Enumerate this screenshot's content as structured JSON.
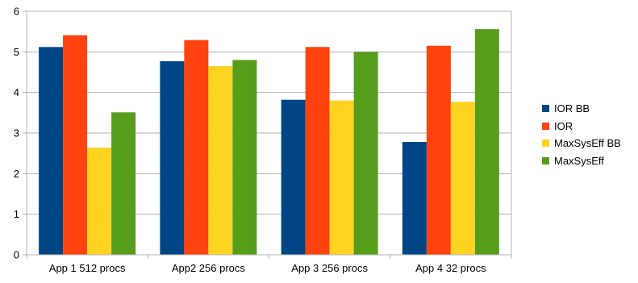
{
  "chart_data": {
    "type": "bar",
    "categories": [
      "App 1 512 procs",
      "App2 256 procs",
      "App 3 256 procs",
      "App 4 32 procs"
    ],
    "series": [
      {
        "name": "IOR BB",
        "color": "#004586",
        "values": [
          5.12,
          4.77,
          3.82,
          2.78
        ]
      },
      {
        "name": "IOR",
        "color": "#ff420e",
        "values": [
          5.41,
          5.29,
          5.12,
          5.15
        ]
      },
      {
        "name": "MaxSysEff BB",
        "color": "#ffd320",
        "values": [
          2.64,
          4.65,
          3.8,
          3.77
        ]
      },
      {
        "name": "MaxSysEff",
        "color": "#579d1c",
        "values": [
          3.51,
          4.8,
          5.0,
          5.56
        ]
      }
    ],
    "yticks": [
      "0",
      "1",
      "2",
      "3",
      "4",
      "5",
      "6"
    ],
    "ylim": [
      0,
      6
    ],
    "grid": true,
    "legend_position": "right",
    "xlabel": "",
    "ylabel": "",
    "title": ""
  }
}
